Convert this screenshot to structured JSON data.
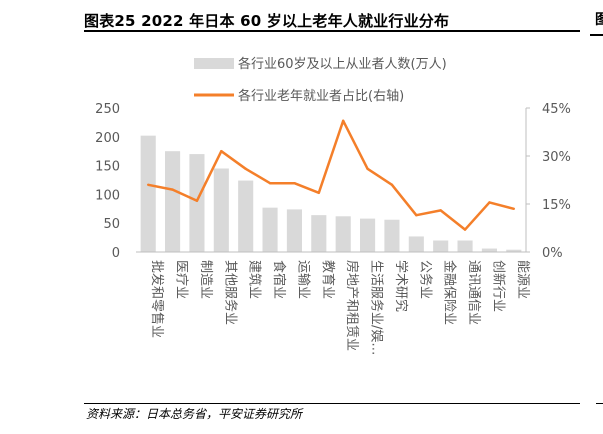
{
  "header": {
    "title": "图表25    2022 年日本 60 岁以上老年人就业行业分布",
    "edge_char": "图"
  },
  "footer": {
    "source": "资料来源：日本总务省，平安证券研究所"
  },
  "colors": {
    "bar": "#d9d9d9",
    "line": "#f47f2a",
    "axis": "#bfbfbf",
    "text": "#595959"
  },
  "chart_data": {
    "type": "bar+line",
    "categories": [
      "批发和零售业",
      "医疗业",
      "制造业",
      "其他服务业",
      "建筑业",
      "食宿业",
      "运输业",
      "教育业",
      "房地产和租赁业",
      "生活服务业/娱…",
      "学术研究",
      "公务业",
      "金融保险业",
      "通讯通信业",
      "创新行业",
      "能源业"
    ],
    "series": [
      {
        "name": "各行业60岁及以上从业者人数(万人)",
        "type": "bar",
        "axis": "left",
        "values": [
          202,
          175,
          170,
          145,
          124,
          77,
          74,
          64,
          62,
          58,
          56,
          27,
          20,
          20,
          6,
          4
        ]
      },
      {
        "name": "各行业老年就业者占比(右轴)",
        "type": "line",
        "axis": "right",
        "values": [
          21,
          19.5,
          16,
          31.5,
          26,
          21.5,
          21.5,
          18.5,
          41,
          26,
          21,
          11.5,
          13,
          7,
          15.5,
          13.5
        ]
      }
    ],
    "left_axis": {
      "min": 0,
      "max": 250,
      "ticks": [
        "0",
        "50",
        "100",
        "150",
        "200",
        "250"
      ]
    },
    "right_axis": {
      "min": 0,
      "max": 45,
      "ticks": [
        "0%",
        "15%",
        "30%",
        "45%"
      ]
    }
  }
}
